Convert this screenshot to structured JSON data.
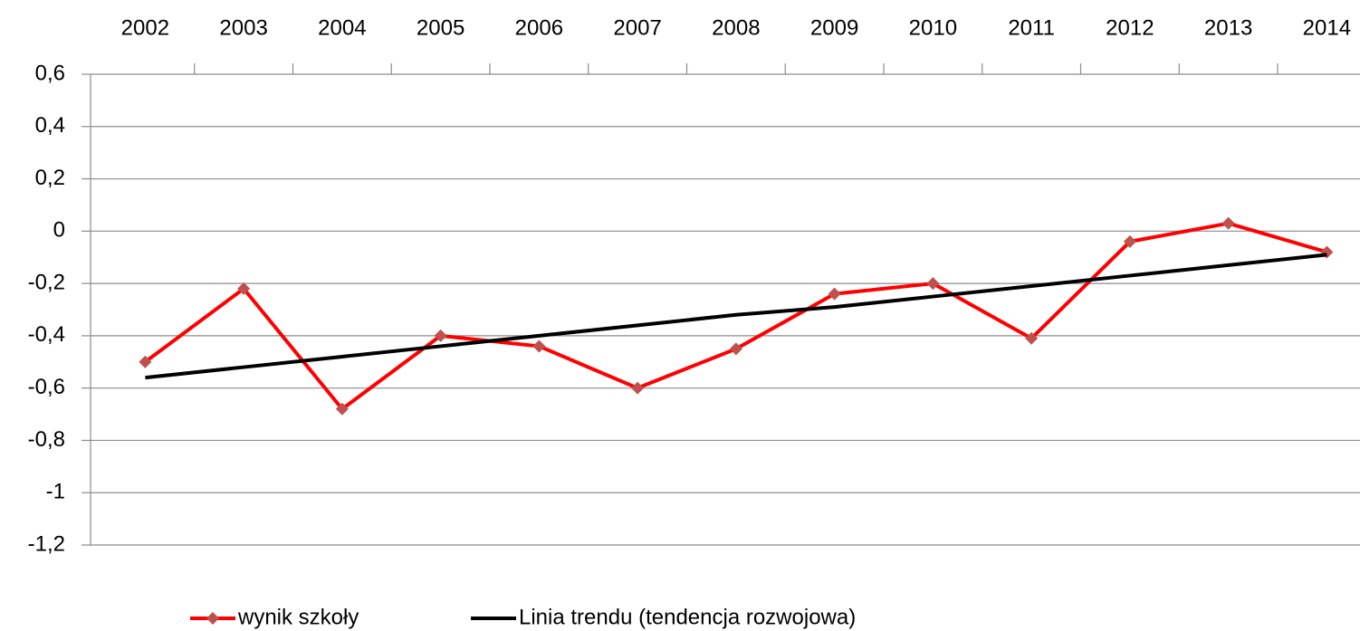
{
  "chart_data": {
    "type": "line",
    "categories": [
      "2002",
      "2003",
      "2004",
      "2005",
      "2006",
      "2007",
      "2008",
      "2009",
      "2010",
      "2011",
      "2012",
      "2013",
      "2014"
    ],
    "series": [
      {
        "name": "wynik szkoły",
        "color": "#ff0000",
        "marker_color": "#c0504d",
        "markers": true,
        "values": [
          -0.5,
          -0.22,
          -0.68,
          -0.4,
          -0.44,
          -0.6,
          -0.45,
          -0.24,
          -0.2,
          -0.41,
          -0.04,
          0.03,
          -0.08
        ]
      },
      {
        "name": "Linia trendu (tendencja rozwojowa)",
        "color": "#000000",
        "markers": false,
        "values": [
          -0.56,
          -0.52,
          -0.48,
          -0.44,
          -0.4,
          -0.36,
          -0.32,
          -0.29,
          -0.25,
          -0.21,
          -0.17,
          -0.13,
          -0.09
        ]
      }
    ],
    "ylim": [
      -1.2,
      0.6
    ],
    "yticks": [
      {
        "value": 0.6,
        "label": "0,6"
      },
      {
        "value": 0.4,
        "label": "0,4"
      },
      {
        "value": 0.2,
        "label": "0,2"
      },
      0,
      {
        "value": -0.2,
        "label": "-0,2"
      },
      {
        "value": -0.4,
        "label": "-0,4"
      },
      {
        "value": -0.6,
        "label": "-0,6"
      },
      {
        "value": -0.8,
        "label": "-0,8"
      },
      -1,
      {
        "value": -1.2,
        "label": "-1,2"
      }
    ],
    "grid": true,
    "legend": "bottom"
  }
}
